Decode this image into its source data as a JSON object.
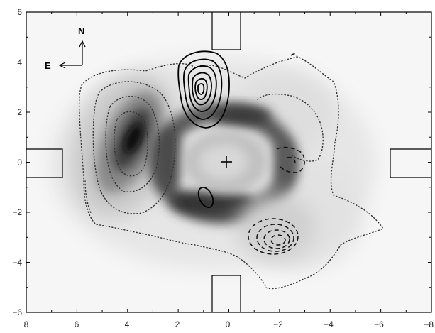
{
  "figure": {
    "x_ticks": [
      "8",
      "6",
      "4",
      "2",
      "0",
      "−2",
      "−4",
      "−6",
      "−8"
    ],
    "y_ticks": [
      "6",
      "4",
      "2",
      "0",
      "−2",
      "−4",
      "−6"
    ],
    "compass": {
      "north": "N",
      "east": "E"
    },
    "center_marker": "+"
  },
  "colors": {
    "frame": "#000000",
    "background": "#f5f5f5",
    "nebula_dark": "#2a2a2a",
    "contour_solid": "#000000",
    "contour_dotted": "#333333"
  }
}
